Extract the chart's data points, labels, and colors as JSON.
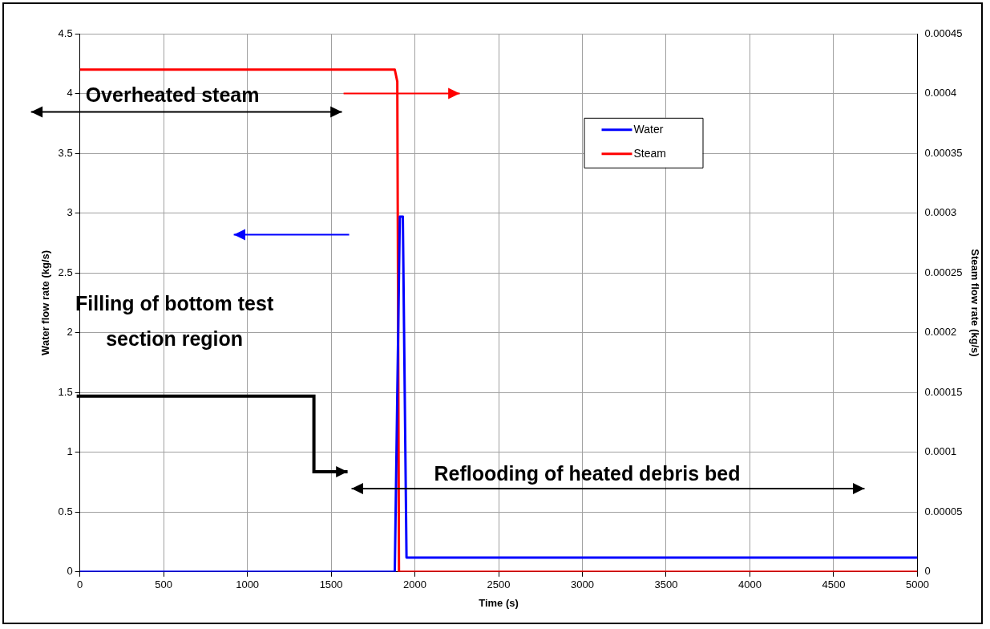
{
  "chart_data": {
    "type": "line",
    "xlabel": "Time (s)",
    "ylabel": "Water flow rate (kg/s)",
    "y2label": "Steam flow rate (kg/s)",
    "series": [
      {
        "name": "Water",
        "color": "#0000ff",
        "x": [
          0,
          1880,
          1910,
          1928,
          1950,
          5000
        ],
        "values": [
          0,
          0,
          2.97,
          2.97,
          0.12,
          0.12
        ]
      },
      {
        "name": "Steam",
        "color": "#ff0000",
        "axis": "y2",
        "x": [
          0,
          1880,
          1895,
          1905,
          5000
        ],
        "values": [
          0.00042,
          0.00042,
          0.00041,
          0,
          0
        ]
      }
    ],
    "xlim": [
      0,
      5000
    ],
    "xticks": [
      0,
      500,
      1000,
      1500,
      2000,
      2500,
      3000,
      3500,
      4000,
      4500,
      5000
    ],
    "ylim": [
      0,
      4.5
    ],
    "yticks": [
      0,
      0.5,
      1,
      1.5,
      2,
      2.5,
      3,
      3.5,
      4,
      4.5
    ],
    "y2lim": [
      0,
      0.00045
    ],
    "y2ticks": [
      0,
      {
        "value": 5e-05,
        "label": "0.00005"
      },
      0.0001,
      0.00015,
      0.0002,
      0.00025,
      0.0003,
      0.00035,
      0.0004,
      0.00045
    ],
    "annotations": [
      "Overheated steam",
      "Filling of bottom test section region",
      "Reflooding of heated debris bed"
    ],
    "grid": true,
    "legend": "top",
    "marker": "none",
    "line_style": "solid"
  }
}
